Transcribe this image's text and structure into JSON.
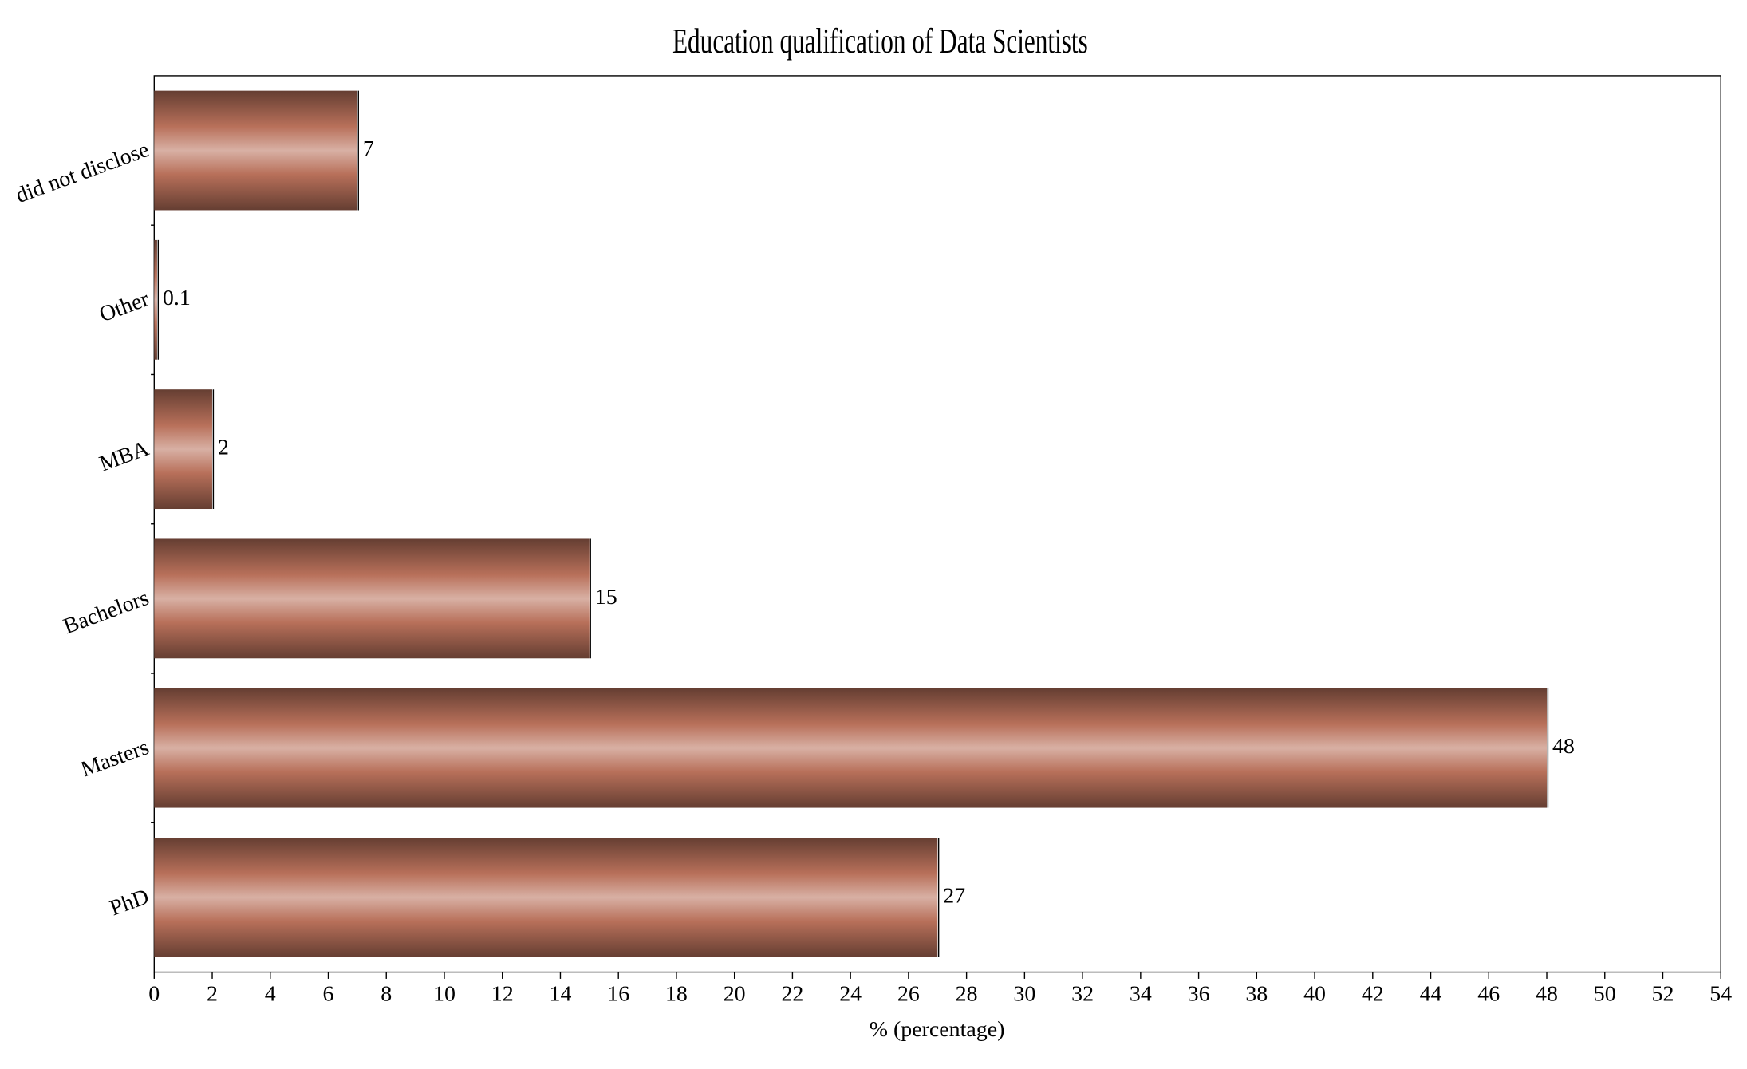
{
  "chart_data": {
    "type": "hbar",
    "title": "Education qualification of Data Scientists",
    "x_label": "% (percentage)",
    "categories": [
      "PhD",
      "Masters",
      "Bachelors",
      "MBA",
      "Other",
      "did not disclose"
    ],
    "values": [
      27,
      48,
      15,
      2,
      0.1,
      7
    ],
    "color": "#b8705a",
    "xlim": [
      0,
      54
    ],
    "xticks": [
      0,
      2,
      4,
      6,
      8,
      10,
      12,
      14,
      16,
      18,
      20,
      22,
      24,
      26,
      28,
      30,
      32,
      34,
      36,
      38,
      40,
      42,
      44,
      46,
      48,
      50,
      52,
      54
    ]
  }
}
